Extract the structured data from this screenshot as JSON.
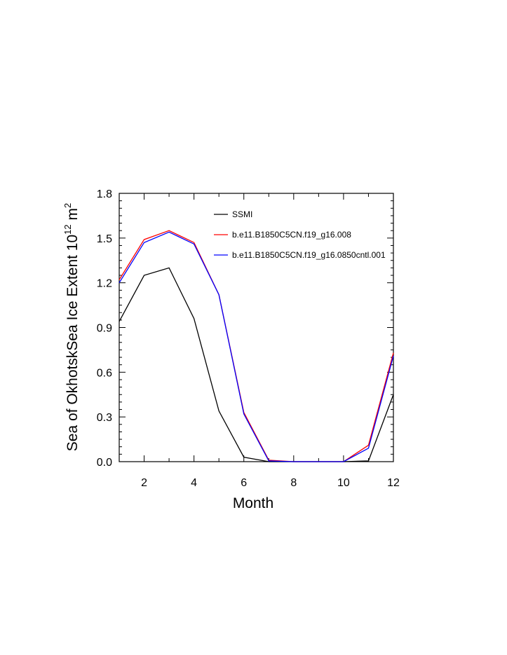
{
  "chart_data": {
    "type": "line",
    "xlabel": "Month",
    "ylabel": "Sea of OkhotskSea Ice Extent 10",
    "ylabel_exponent": "12",
    "ylabel_unit": "m",
    "ylabel_unit_exponent": "2",
    "xlim": [
      1,
      12
    ],
    "ylim": [
      0.0,
      1.8
    ],
    "x_ticks": [
      2,
      4,
      6,
      8,
      10,
      12
    ],
    "x_tick_labels": [
      "2",
      "4",
      "6",
      "8",
      "10",
      "12"
    ],
    "y_ticks": [
      0.0,
      0.3,
      0.6,
      0.9,
      1.2,
      1.5,
      1.8
    ],
    "y_tick_labels": [
      "0.0",
      "0.3",
      "0.6",
      "0.9",
      "1.2",
      "1.5",
      "1.8"
    ],
    "x": [
      1,
      2,
      3,
      4,
      5,
      6,
      7,
      8,
      9,
      10,
      11,
      12
    ],
    "series": [
      {
        "name": "SSMI",
        "color": "#000000",
        "values": [
          0.94,
          1.25,
          1.3,
          0.96,
          0.34,
          0.03,
          0.0,
          0.0,
          0.0,
          0.0,
          0.005,
          0.45
        ]
      },
      {
        "name": "b.e11.B1850C5CN.f19_g16.008",
        "color": "#ff0000",
        "values": [
          1.22,
          1.49,
          1.55,
          1.47,
          1.12,
          0.33,
          0.01,
          0.0,
          0.0,
          0.0,
          0.11,
          0.73
        ]
      },
      {
        "name": "b.e11.B1850C5CN.f19_g16.0850cntl.001",
        "color": "#0000ff",
        "values": [
          1.2,
          1.47,
          1.54,
          1.46,
          1.12,
          0.32,
          0.005,
          0.0,
          0.0,
          0.0,
          0.09,
          0.71
        ]
      }
    ],
    "grid": false,
    "legend_position": "top-right"
  }
}
